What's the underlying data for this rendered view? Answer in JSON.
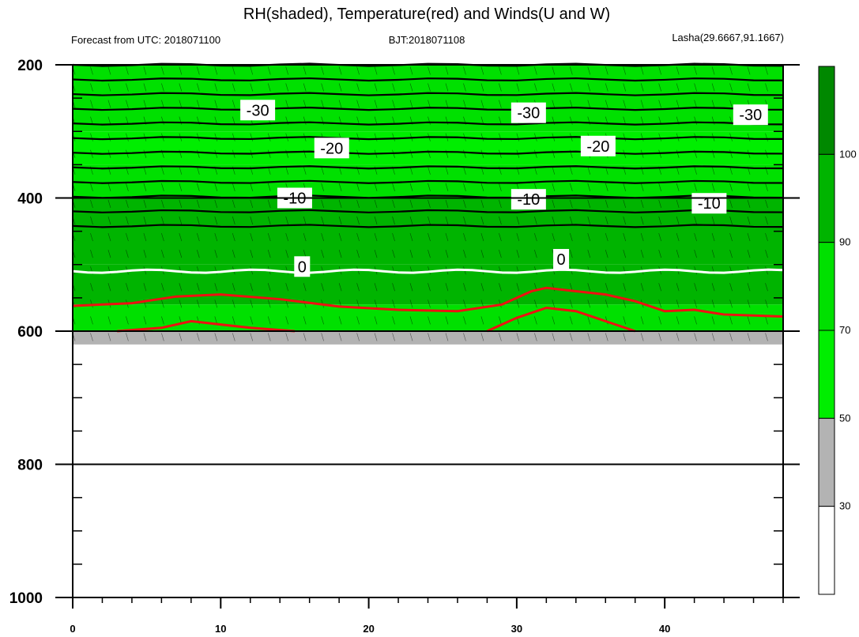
{
  "chart_data": {
    "type": "heatmap",
    "title": "RH(shaded), Temperature(red) and Winds(U and W)",
    "subtitle_left": "Forecast from UTC: 2018071100",
    "subtitle_center": "BJT:2018071108",
    "subtitle_right": "Lasha(29.6667,91.1667)",
    "xlim": [
      0,
      48
    ],
    "ylim": [
      1000,
      200
    ],
    "x_ticks": [
      "0",
      "10",
      "20",
      "30",
      "40"
    ],
    "y_ticks": [
      "200",
      "400",
      "600",
      "800",
      "1000"
    ],
    "colorbar": {
      "labels": [
        "30",
        "50",
        "70",
        "90",
        "100"
      ],
      "colors": [
        "#ffffff",
        "#b3b3b3",
        "#00ee00",
        "#00e000",
        "#00b400",
        "#008800"
      ]
    },
    "rh_bands": [
      {
        "top": 200,
        "bottom": 300,
        "rh": 75
      },
      {
        "top": 300,
        "bottom": 350,
        "rh": 60
      },
      {
        "top": 350,
        "bottom": 400,
        "rh": 70
      },
      {
        "top": 400,
        "bottom": 500,
        "rh": 92
      },
      {
        "top": 500,
        "bottom": 560,
        "rh": 90
      },
      {
        "top": 560,
        "bottom": 600,
        "rh": 72
      },
      {
        "top": 600,
        "bottom": 620,
        "rh": 40
      }
    ],
    "isotherms": [
      {
        "t": -30,
        "p": 275
      },
      {
        "t": -20,
        "p": 340
      },
      {
        "t": -10,
        "p": 405
      },
      {
        "t": 0,
        "p": 510
      }
    ],
    "isotherm_labels": [
      {
        "text": "-30",
        "x": 12.5,
        "p": 268
      },
      {
        "text": "-30",
        "x": 30.8,
        "p": 272
      },
      {
        "text": "-30",
        "x": 45.8,
        "p": 275
      },
      {
        "text": "-20",
        "x": 17.5,
        "p": 325
      },
      {
        "text": "-20",
        "x": 35.5,
        "p": 322
      },
      {
        "text": "-10",
        "x": 15,
        "p": 400
      },
      {
        "text": "-10",
        "x": 30.8,
        "p": 402
      },
      {
        "text": "-10",
        "x": 43,
        "p": 408
      },
      {
        "text": "0",
        "x": 15.5,
        "p": 503
      },
      {
        "text": "0",
        "x": 33,
        "p": 492
      }
    ],
    "temperature_red": [
      {
        "x": [
          0,
          4,
          7,
          10,
          14,
          18,
          22,
          26,
          29,
          31,
          32,
          34,
          36,
          38,
          40,
          42,
          44,
          48
        ],
        "p": [
          562,
          558,
          548,
          545,
          552,
          563,
          568,
          570,
          560,
          540,
          535,
          540,
          545,
          555,
          570,
          568,
          575,
          578
        ]
      },
      {
        "x": [
          3,
          6,
          8,
          10,
          12,
          15
        ],
        "p": [
          600,
          595,
          585,
          590,
          595,
          600
        ]
      },
      {
        "x": [
          28,
          30,
          32,
          34,
          36,
          38
        ],
        "p": [
          600,
          580,
          565,
          570,
          585,
          600
        ]
      }
    ],
    "surface_p": 625
  }
}
